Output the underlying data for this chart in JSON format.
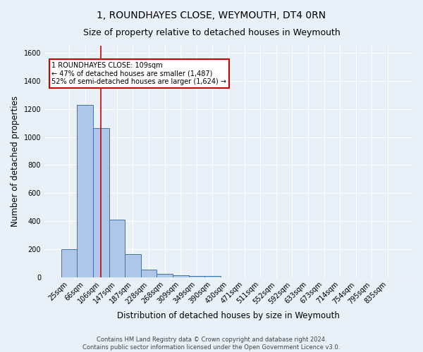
{
  "title": "1, ROUNDHAYES CLOSE, WEYMOUTH, DT4 0RN",
  "subtitle": "Size of property relative to detached houses in Weymouth",
  "xlabel": "Distribution of detached houses by size in Weymouth",
  "ylabel": "Number of detached properties",
  "footer_line1": "Contains HM Land Registry data © Crown copyright and database right 2024.",
  "footer_line2": "Contains public sector information licensed under the Open Government Licence v3.0.",
  "bin_labels": [
    "25sqm",
    "66sqm",
    "106sqm",
    "147sqm",
    "187sqm",
    "228sqm",
    "268sqm",
    "309sqm",
    "349sqm",
    "390sqm",
    "430sqm",
    "471sqm",
    "511sqm",
    "552sqm",
    "592sqm",
    "633sqm",
    "673sqm",
    "714sqm",
    "754sqm",
    "795sqm",
    "835sqm"
  ],
  "bin_values": [
    200,
    1230,
    1065,
    408,
    165,
    52,
    25,
    15,
    10,
    10,
    0,
    0,
    0,
    0,
    0,
    0,
    0,
    0,
    0,
    0,
    0
  ],
  "bar_color": "#aec6e8",
  "bar_edge_color": "#4472a8",
  "highlight_bin_index": 2,
  "red_line_color": "#cc0000",
  "annotation_text_line1": "1 ROUNDHAYES CLOSE: 109sqm",
  "annotation_text_line2": "← 47% of detached houses are smaller (1,487)",
  "annotation_text_line3": "52% of semi-detached houses are larger (1,624) →",
  "annotation_box_color": "#ffffff",
  "annotation_border_color": "#cc0000",
  "ylim": [
    0,
    1650
  ],
  "bg_color": "#e8f0f8",
  "plot_bg_color": "#e8f0f8",
  "grid_color": "#ffffff",
  "title_fontsize": 10,
  "subtitle_fontsize": 9,
  "axis_label_fontsize": 8.5,
  "tick_fontsize": 7,
  "annotation_fontsize": 7,
  "footer_fontsize": 6
}
